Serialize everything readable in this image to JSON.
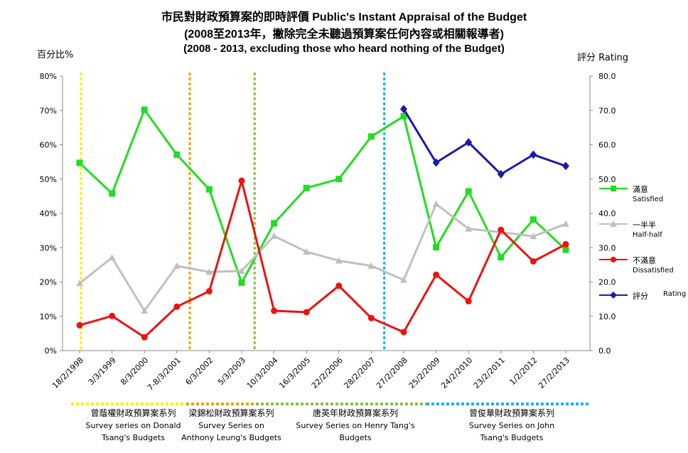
{
  "title_lines": [
    "市民對財政預算案的即時評價 Public's Instant Appraisal of the Budget",
    "(2008至2013年，撇除完全未聽過預算案任何內容或相關報導者)",
    "(2008 - 2013, excluding those who heard nothing of the Budget)"
  ],
  "y_left_label": "百分比%",
  "y_right_label": "評分 Rating",
  "chart_data": {
    "type": "line",
    "categories": [
      "18/2/1998",
      "3/3/1999",
      "8/3/2000",
      "7-8/3/2001",
      "6/3/2002",
      "5/3/2003",
      "10/3/2004",
      "16/3/2005",
      "22/2/2006",
      "28/2/2007",
      "27/2/2008",
      "25/2/2009",
      "24/2/2010",
      "23/2/2011",
      "1/2/2012",
      "27/2/2013"
    ],
    "y_left": {
      "label": "百分比%",
      "range": [
        0,
        80
      ],
      "ticks": [
        "0%",
        "10%",
        "20%",
        "30%",
        "40%",
        "50%",
        "60%",
        "70%",
        "80%"
      ]
    },
    "y_right": {
      "label": "評分 Rating",
      "range": [
        0,
        80
      ],
      "ticks": [
        "0.0",
        "10.0",
        "20.0",
        "30.0",
        "40.0",
        "50.0",
        "60.0",
        "70.0",
        "80.0"
      ]
    },
    "series": [
      {
        "name": "滿意",
        "name_en": "Satisfied",
        "color": "#22dd22",
        "marker": "square",
        "axis": "left",
        "values": [
          54.7,
          45.8,
          70.2,
          57.1,
          47.0,
          19.8,
          37.1,
          47.4,
          50.0,
          62.4,
          68.3,
          30.1,
          46.4,
          27.2,
          38.2,
          29.4
        ]
      },
      {
        "name": "一半半",
        "name_en": "Half-half",
        "color": "#c0c0c0",
        "marker": "triangle",
        "axis": "left",
        "values": [
          19.6,
          27.1,
          11.6,
          24.7,
          22.9,
          23.2,
          33.4,
          28.8,
          26.2,
          24.7,
          20.6,
          42.7,
          35.5,
          34.5,
          33.3,
          36.9
        ]
      },
      {
        "name": "不滿意",
        "name_en": "Dissatisfied",
        "color": "#ee1111",
        "marker": "circle",
        "axis": "left",
        "values": [
          7.4,
          10.1,
          3.9,
          12.8,
          17.3,
          49.5,
          11.6,
          11.2,
          18.9,
          9.5,
          5.4,
          22.1,
          14.4,
          35.2,
          26.0,
          31.0
        ]
      },
      {
        "name": "評分",
        "name_en": "Rating",
        "color": "#1a1aaa",
        "marker": "diamond",
        "axis": "right",
        "values": [
          null,
          null,
          null,
          null,
          null,
          null,
          null,
          null,
          null,
          null,
          70.4,
          54.8,
          60.7,
          51.4,
          57.1,
          53.8
        ]
      }
    ],
    "vertical_dividers": [
      {
        "after_category": "18/2/1998",
        "color": "#ffee00"
      },
      {
        "after_category": "7-8/3/2001",
        "color": "#f0a000"
      },
      {
        "after_category": "5/3/2003",
        "color": "#88c040"
      },
      {
        "after_category": "28/2/2007",
        "color": "#1ab0ee"
      }
    ],
    "legend_position": "right",
    "grid": false
  },
  "series_captions": [
    {
      "cn": "曾蔭權財政預算案系列",
      "en": [
        "Survey  series on Donald",
        "Tsang's Budgets"
      ],
      "color": "#ffee00"
    },
    {
      "cn": "梁錦松財政預算案系列",
      "en": [
        "Survey Series on",
        "Anthony Leung's Budgets"
      ],
      "color": "#f0a000"
    },
    {
      "cn": "唐英年財政預算案系列",
      "en": [
        "Survey Series on Henry Tang's",
        "Budgets"
      ],
      "color": "#88c040"
    },
    {
      "cn": "曾俊華財政預算案系列",
      "en": [
        "Survey Series on John",
        "Tsang's Budgets"
      ],
      "color": "#1ab0ee"
    }
  ]
}
